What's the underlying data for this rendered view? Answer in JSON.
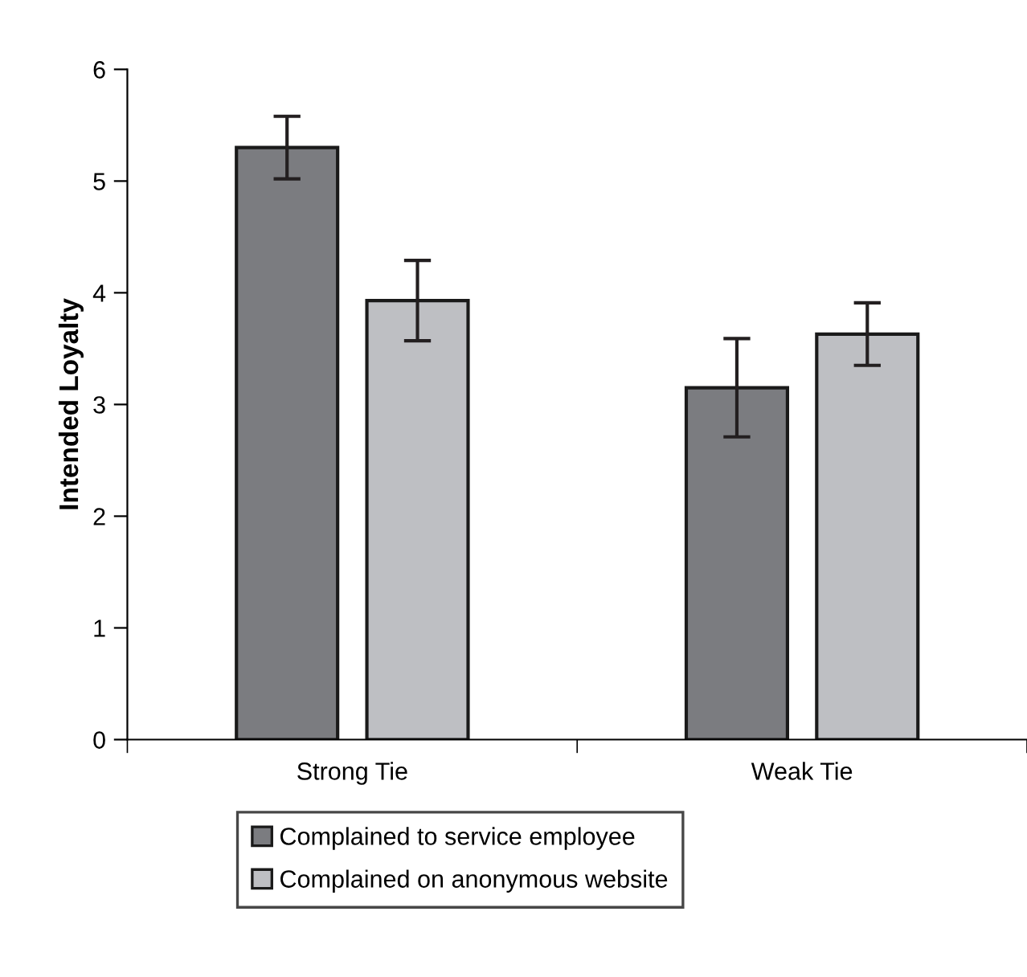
{
  "chart_data": {
    "type": "bar",
    "ylabel": "Intended Loyalty",
    "categories": [
      "Strong Tie",
      "Weak Tie"
    ],
    "series": [
      {
        "name": "Complained to service employee",
        "color": "#7b7c80",
        "values": [
          5.3,
          3.15
        ],
        "errors": [
          0.28,
          0.44
        ]
      },
      {
        "name": "Complained on anonymous website",
        "color": "#bebfc3",
        "values": [
          3.93,
          3.63
        ],
        "errors": [
          0.36,
          0.28
        ]
      }
    ],
    "ylim": [
      0,
      6
    ],
    "yticks": [
      0,
      1,
      2,
      3,
      4,
      5,
      6
    ],
    "grid": false,
    "legend": "bottom"
  }
}
